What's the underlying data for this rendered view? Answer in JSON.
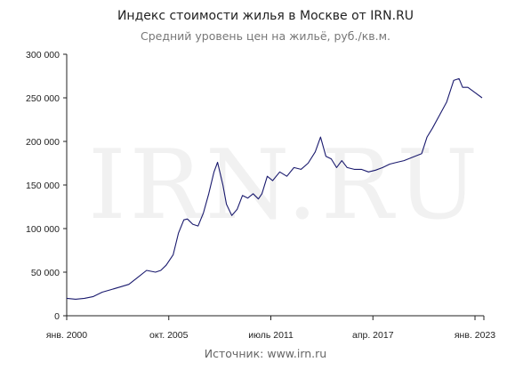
{
  "chart_data": {
    "type": "line",
    "title": "Индекс стоимости жилья в Москве от IRN.RU",
    "subtitle": "Средний уровень цен на жильё, руб./кв.м.",
    "source": "Источник: www.irn.ru",
    "watermark": "IRN.RU",
    "ylim": [
      0,
      300000
    ],
    "yticks": [
      0,
      50000,
      100000,
      150000,
      200000,
      250000,
      300000
    ],
    "ytick_labels": [
      "0",
      "50 000",
      "100 000",
      "150 000",
      "200 000",
      "250 000",
      "300 000"
    ],
    "xlim": [
      2000.0,
      2023.5
    ],
    "xticks": [
      2000.0,
      2005.75,
      2011.5,
      2017.25,
      2023.0
    ],
    "xtick_labels": [
      "янв. 2000",
      "окт. 2005",
      "июль 2011",
      "апр. 2017",
      "янв. 2023"
    ],
    "line_color": "#1a1a6e",
    "grid": false,
    "series": [
      {
        "x": [
          2000.0,
          2000.5,
          2001.0,
          2001.5,
          2002.0,
          2002.5,
          2003.0,
          2003.5,
          2004.0,
          2004.5,
          2005.0,
          2005.3,
          2005.6,
          2006.0,
          2006.3,
          2006.6,
          2006.8,
          2007.1,
          2007.4,
          2007.7,
          2008.0,
          2008.3,
          2008.5,
          2008.8,
          2009.0,
          2009.3,
          2009.6,
          2009.9,
          2010.2,
          2010.5,
          2010.8,
          2011.0,
          2011.3,
          2011.6,
          2012.0,
          2012.4,
          2012.8,
          2013.2,
          2013.6,
          2014.0,
          2014.3,
          2014.6,
          2014.9,
          2015.2,
          2015.5,
          2015.8,
          2016.2,
          2016.6,
          2017.0,
          2017.4,
          2017.8,
          2018.2,
          2018.6,
          2019.0,
          2019.5,
          2020.0,
          2020.3,
          2020.6,
          2021.0,
          2021.4,
          2021.8,
          2022.1,
          2022.3,
          2022.6,
          2023.0,
          2023.4
        ],
        "values": [
          20000,
          19000,
          20000,
          22000,
          27000,
          30000,
          33000,
          36000,
          44000,
          52000,
          50000,
          52000,
          58000,
          70000,
          95000,
          110000,
          111000,
          105000,
          103000,
          118000,
          140000,
          165000,
          176000,
          150000,
          128000,
          115000,
          122000,
          138000,
          135000,
          140000,
          134000,
          140000,
          160000,
          155000,
          165000,
          160000,
          170000,
          168000,
          175000,
          188000,
          205000,
          183000,
          180000,
          170000,
          178000,
          170000,
          168000,
          168000,
          165000,
          167000,
          170000,
          174000,
          176000,
          178000,
          182000,
          186000,
          205000,
          215000,
          230000,
          245000,
          270000,
          272000,
          262000,
          262000,
          256000,
          250000
        ]
      }
    ]
  }
}
